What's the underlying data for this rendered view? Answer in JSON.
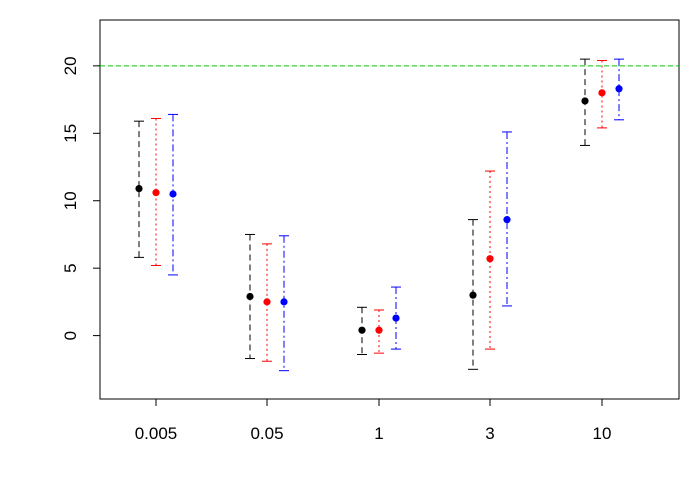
{
  "chart_data": {
    "type": "scatter",
    "title": "",
    "xlabel": "",
    "ylabel": "",
    "categories": [
      "0.005",
      "0.05",
      "1",
      "3",
      "10"
    ],
    "ylim": [
      -4.7,
      23.4
    ],
    "yticks": [
      0,
      5,
      10,
      15,
      20
    ],
    "reference_line": {
      "y": 20,
      "color": "#00cc00",
      "style": "dashed"
    },
    "legend": "none",
    "grid": false,
    "series": [
      {
        "color": "#000000",
        "line_style": "dashed",
        "means": [
          10.9,
          2.9,
          0.4,
          3.0,
          17.4
        ],
        "lower": [
          5.8,
          -1.7,
          -1.4,
          -2.5,
          14.1
        ],
        "upper": [
          15.9,
          7.5,
          2.1,
          8.6,
          20.5
        ]
      },
      {
        "color": "#ff0000",
        "line_style": "dotted",
        "means": [
          10.6,
          2.5,
          0.4,
          5.7,
          18.0
        ],
        "lower": [
          5.2,
          -1.9,
          -1.3,
          -1.0,
          15.4
        ],
        "upper": [
          16.1,
          6.8,
          1.9,
          12.2,
          20.4
        ]
      },
      {
        "color": "#0000ff",
        "line_style": "dashdot",
        "means": [
          10.5,
          2.5,
          1.3,
          8.6,
          18.3
        ],
        "lower": [
          4.5,
          -2.6,
          -1.0,
          2.2,
          16.0
        ],
        "upper": [
          16.4,
          7.4,
          3.6,
          15.1,
          20.5
        ]
      }
    ]
  }
}
